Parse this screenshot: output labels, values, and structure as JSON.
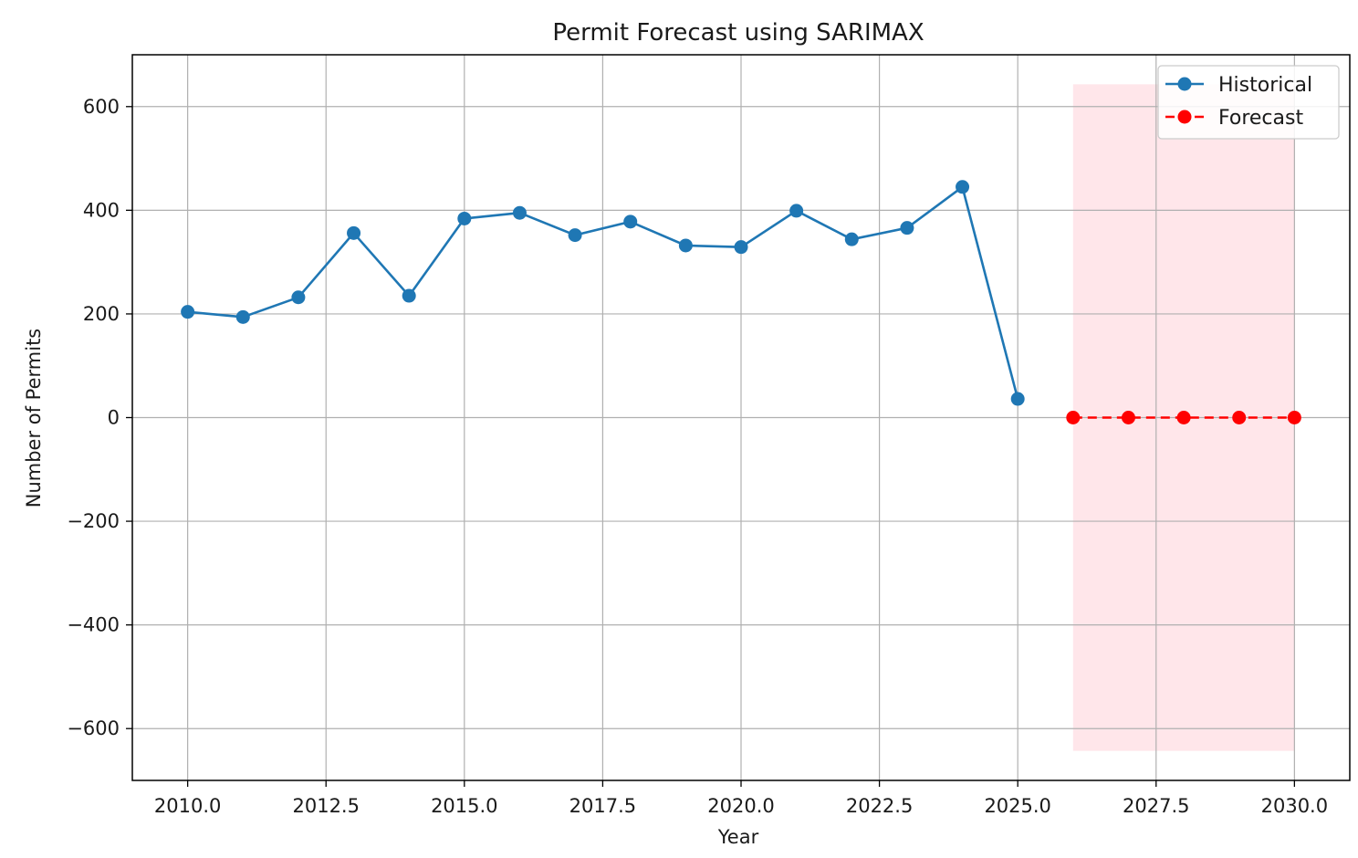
{
  "chart_data": {
    "type": "line",
    "title": "Permit Forecast using SARIMAX",
    "xlabel": "Year",
    "ylabel": "Number of Permits",
    "xlim": [
      2009.0,
      2031.0
    ],
    "ylim": [
      -700,
      700
    ],
    "x_ticks": [
      2010.0,
      2012.5,
      2015.0,
      2017.5,
      2020.0,
      2022.5,
      2025.0,
      2027.5,
      2030.0
    ],
    "x_tick_labels": [
      "2010.0",
      "2012.5",
      "2015.0",
      "2017.5",
      "2020.0",
      "2022.5",
      "2025.0",
      "2027.5",
      "2030.0"
    ],
    "y_ticks": [
      -600,
      -400,
      -200,
      0,
      200,
      400,
      600
    ],
    "y_tick_labels": [
      "−600",
      "−400",
      "−200",
      "0",
      "200",
      "400",
      "600"
    ],
    "grid": true,
    "legend_position": "top-right",
    "series": [
      {
        "name": "Historical",
        "color": "#1f77b4",
        "line_style": "solid",
        "marker": "circle",
        "x": [
          2010,
          2011,
          2012,
          2013,
          2014,
          2015,
          2016,
          2017,
          2018,
          2019,
          2020,
          2021,
          2022,
          2023,
          2024,
          2025
        ],
        "y": [
          204,
          194,
          232,
          356,
          235,
          384,
          395,
          352,
          378,
          332,
          329,
          399,
          344,
          366,
          445,
          36
        ]
      },
      {
        "name": "Forecast",
        "color": "#ff0000",
        "line_style": "dashed",
        "marker": "circle",
        "x": [
          2026,
          2027,
          2028,
          2029,
          2030
        ],
        "y": [
          0,
          0,
          0,
          0,
          0
        ]
      }
    ],
    "confidence_band": {
      "color": "#ffc0cb",
      "x_start": 2026,
      "x_end": 2030,
      "lower": -643,
      "upper": 643
    }
  }
}
